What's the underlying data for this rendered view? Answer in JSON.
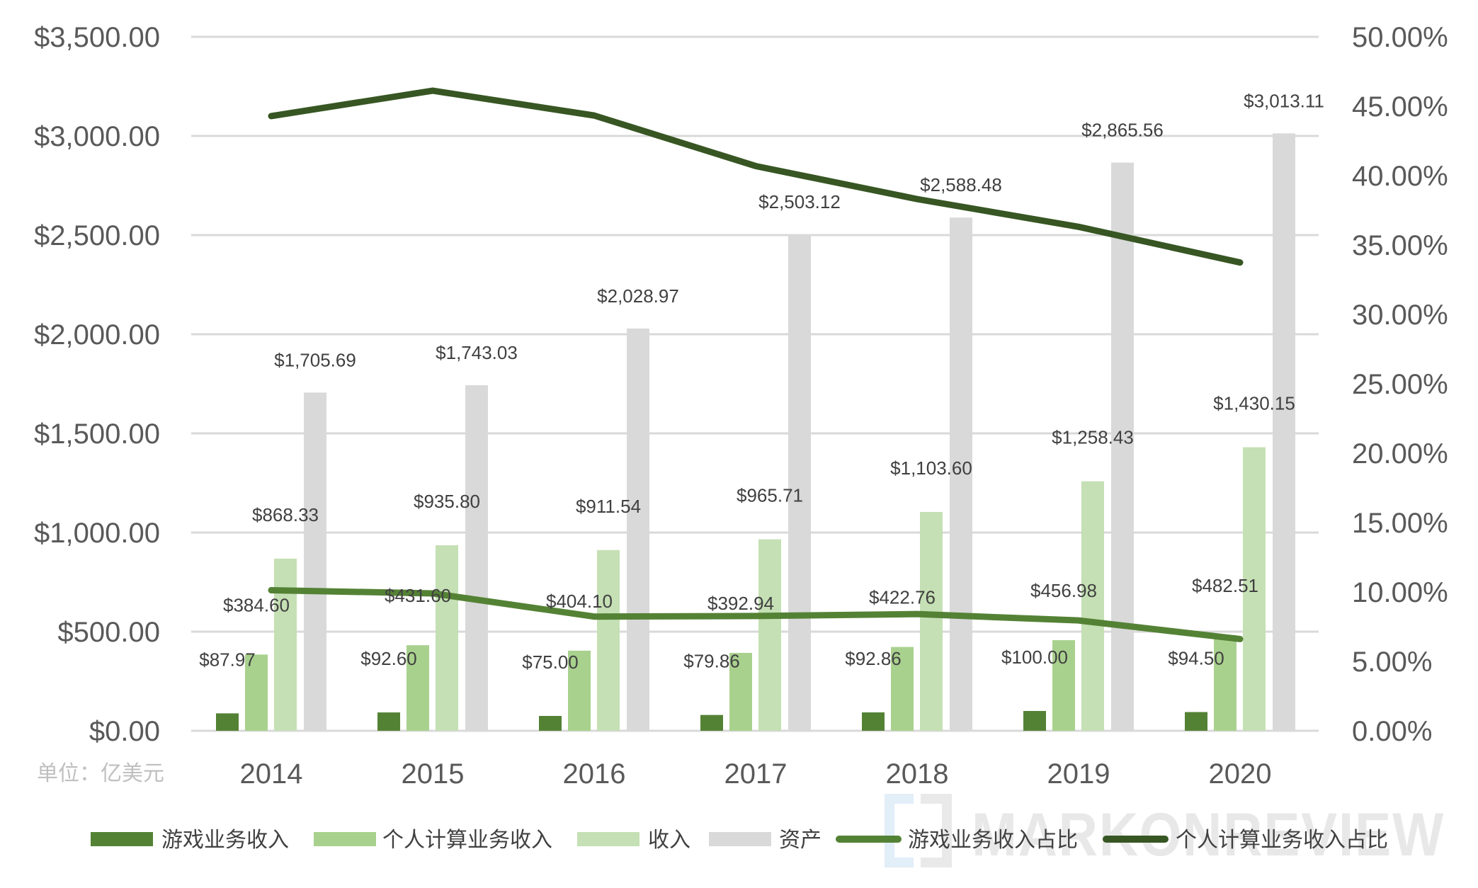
{
  "unit_label": "单位：亿美元",
  "watermark": "MARKONREVIEW",
  "colors": {
    "game_revenue": "#548235",
    "pc_revenue": "#a9d18e",
    "revenue": "#c5e0b4",
    "assets": "#d9d9d9",
    "game_share_line": "#548235",
    "pc_share_line": "#375623",
    "gridline": "#d9d9d9",
    "axis_text": "#595959",
    "label_text": "#404040"
  },
  "legend": [
    {
      "label": "游戏业务收入",
      "type": "bar",
      "color": "#548235"
    },
    {
      "label": "个人计算业务收入",
      "type": "bar",
      "color": "#a9d18e"
    },
    {
      "label": "收入",
      "type": "bar",
      "color": "#c5e0b4"
    },
    {
      "label": "资产",
      "type": "bar",
      "color": "#d9d9d9"
    },
    {
      "label": "游戏业务收入占比",
      "type": "line",
      "color": "#548235"
    },
    {
      "label": "个人计算业务收入占比",
      "type": "line",
      "color": "#375623"
    }
  ],
  "chart_data": {
    "type": "bar",
    "title": "",
    "xlabel": "",
    "ylabel": "单位：亿美元",
    "categories": [
      "2014",
      "2015",
      "2016",
      "2017",
      "2018",
      "2019",
      "2020"
    ],
    "left_axis": {
      "ylim": [
        0,
        3500
      ],
      "ticks": [
        "$0.00",
        "$500.00",
        "$1,000.00",
        "$1,500.00",
        "$2,000.00",
        "$2,500.00",
        "$3,000.00",
        "$3,500.00"
      ]
    },
    "right_axis": {
      "ylim": [
        0,
        50
      ],
      "ticks": [
        "0.00%",
        "5.00%",
        "10.00%",
        "15.00%",
        "20.00%",
        "25.00%",
        "30.00%",
        "35.00%",
        "40.00%",
        "45.00%",
        "50.00%"
      ]
    },
    "grid": true,
    "legend_position": "bottom",
    "series": [
      {
        "name": "游戏业务收入",
        "type": "bar",
        "axis": "left",
        "values": [
          87.97,
          92.6,
          75.0,
          79.86,
          92.86,
          100.0,
          94.5
        ],
        "labels": [
          "$87.97",
          "$92.60",
          "$75.00",
          "$79.86",
          "$92.86",
          "$100.00",
          "$94.50"
        ]
      },
      {
        "name": "个人计算业务收入",
        "type": "bar",
        "axis": "left",
        "values": [
          384.6,
          431.6,
          404.1,
          392.94,
          422.76,
          456.98,
          482.51
        ],
        "labels": [
          "$384.60",
          "$431.60",
          "$404.10",
          "$392.94",
          "$422.76",
          "$456.98",
          "$482.51"
        ]
      },
      {
        "name": "收入",
        "type": "bar",
        "axis": "left",
        "values": [
          868.33,
          935.8,
          911.54,
          965.71,
          1103.6,
          1258.43,
          1430.15
        ],
        "labels": [
          "$868.33",
          "$935.80",
          "$911.54",
          "$965.71",
          "$1,103.60",
          "$1,258.43",
          "$1,430.15"
        ]
      },
      {
        "name": "资产",
        "type": "bar",
        "axis": "left",
        "values": [
          1705.69,
          1743.03,
          2028.97,
          2503.12,
          2588.48,
          2865.56,
          3013.11
        ],
        "labels": [
          "$1,705.69",
          "$1,743.03",
          "$2,028.97",
          "$2,503.12",
          "$2,588.48",
          "$2,865.56",
          "$3,013.11"
        ]
      },
      {
        "name": "游戏业务收入占比",
        "type": "line",
        "axis": "right",
        "values": [
          10.13,
          9.9,
          8.23,
          8.27,
          8.41,
          7.95,
          6.61
        ]
      },
      {
        "name": "个人计算业务收入占比",
        "type": "line",
        "axis": "right",
        "values": [
          44.29,
          46.12,
          44.33,
          40.69,
          38.31,
          36.31,
          33.74
        ]
      }
    ]
  }
}
